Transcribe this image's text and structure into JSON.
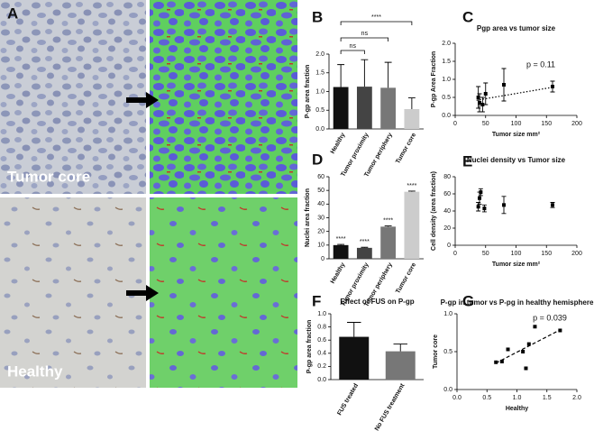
{
  "image_panel": {
    "label": "A",
    "top_caption": "Tumor core",
    "bottom_caption": "Healthy"
  },
  "chart_data": [
    {
      "type": "bar",
      "label": "B",
      "ylabel": "P-gp area fraction",
      "categories": [
        "Healthy",
        "Tumor proximity",
        "Tumor periphery",
        "Tumor core"
      ],
      "values": [
        1.12,
        1.13,
        1.1,
        0.53
      ],
      "errors": [
        0.6,
        0.72,
        0.68,
        0.3
      ],
      "colors": [
        "#111111",
        "#444444",
        "#777777",
        "#cccccc"
      ],
      "ylim": [
        0,
        2.0
      ],
      "yticks": [
        {
          "value": 0,
          "label": "0.0"
        },
        {
          "value": 0.5,
          "label": "0.5"
        },
        {
          "value": 1.0,
          "label": "1.0"
        },
        {
          "value": 1.5,
          "label": "1.5"
        },
        {
          "value": 2.0,
          "label": "2.0"
        }
      ],
      "comparisons": [
        {
          "between": [
            "Healthy",
            "Tumor proximity"
          ],
          "label": "ns"
        },
        {
          "between": [
            "Healthy",
            "Tumor periphery"
          ],
          "label": "ns"
        },
        {
          "between": [
            "Healthy",
            "Tumor core"
          ],
          "label": "****"
        }
      ]
    },
    {
      "type": "scatter",
      "label": "C",
      "title": "Pgp area vs tumor size",
      "xlabel": "Tumor size mm²",
      "ylabel": "P-gp Area Fraction",
      "x": [
        38,
        40,
        45,
        50,
        80,
        160
      ],
      "values": [
        0.5,
        0.35,
        0.3,
        0.6,
        0.85,
        0.8
      ],
      "errors": [
        0.3,
        0.25,
        0.2,
        0.3,
        0.45,
        0.15
      ],
      "xlim": [
        0,
        200
      ],
      "xticks": [
        0,
        50,
        100,
        150,
        200
      ],
      "ylim": [
        0,
        2.0
      ],
      "yticks": [
        {
          "value": 0,
          "label": "0.0"
        },
        {
          "value": 0.5,
          "label": "0.5"
        },
        {
          "value": 1.0,
          "label": "1.0"
        },
        {
          "value": 1.5,
          "label": "1.5"
        },
        {
          "value": 2.0,
          "label": "2.0"
        }
      ],
      "trend": {
        "x": [
          35,
          160
        ],
        "y": [
          0.42,
          0.78
        ],
        "style": "dotted"
      },
      "annotation": "p = 0.11"
    },
    {
      "type": "bar",
      "label": "D",
      "ylabel": "Nuclei area fraction",
      "categories": [
        "Healthy",
        "Tumor proximity",
        "Tumor periphery",
        "Tumor core"
      ],
      "values": [
        10,
        8,
        23.5,
        49
      ],
      "errors": [
        0.5,
        0.4,
        0.5,
        0.5
      ],
      "colors": [
        "#111111",
        "#444444",
        "#777777",
        "#cccccc"
      ],
      "ylim": [
        0,
        60
      ],
      "yticks": [
        0,
        10,
        20,
        30,
        40,
        50,
        60
      ],
      "bar_annotations": [
        "****",
        "****",
        "****",
        "****"
      ]
    },
    {
      "type": "scatter",
      "label": "E",
      "title": "Nuclei density vs Tumor size",
      "xlabel": "Tumor size mm²",
      "ylabel": "Cell density (area fraction)",
      "x": [
        38,
        40,
        42,
        48,
        80,
        160
      ],
      "values": [
        45,
        55,
        62,
        43,
        47,
        47
      ],
      "errors": [
        5,
        7,
        4,
        4,
        10,
        3
      ],
      "xlim": [
        0,
        200
      ],
      "xticks": [
        0,
        50,
        100,
        150,
        200
      ],
      "ylim": [
        0,
        80
      ],
      "yticks": [
        0,
        20,
        40,
        60,
        80
      ]
    },
    {
      "type": "bar",
      "label": "F",
      "title": "Effect of FUS on P-gp",
      "ylabel": "P-gp area fraction",
      "categories": [
        "FUS treated",
        "No FUS treatment"
      ],
      "values": [
        0.65,
        0.43
      ],
      "errors": [
        0.22,
        0.11
      ],
      "colors": [
        "#111111",
        "#777777"
      ],
      "ylim": [
        0,
        1.0
      ],
      "yticks": [
        {
          "value": 0,
          "label": "0.0"
        },
        {
          "value": 0.2,
          "label": "0.2"
        },
        {
          "value": 0.4,
          "label": "0.4"
        },
        {
          "value": 0.6,
          "label": "0.6"
        },
        {
          "value": 0.8,
          "label": "0.8"
        },
        {
          "value": 1.0,
          "label": "1.0"
        }
      ]
    },
    {
      "type": "scatter",
      "label": "G",
      "title": "P-gp in tumor vs P-pg in healthy hemisphere",
      "xlabel": "Healthy",
      "ylabel": "Tumor core",
      "x": [
        0.65,
        0.75,
        0.85,
        1.1,
        1.15,
        1.2,
        1.3,
        1.72
      ],
      "values": [
        0.36,
        0.37,
        0.53,
        0.5,
        0.28,
        0.6,
        0.83,
        0.78
      ],
      "xlim": [
        0,
        2.0
      ],
      "xticks": [
        {
          "value": 0,
          "label": "0.0"
        },
        {
          "value": 0.5,
          "label": "0.5"
        },
        {
          "value": 1.0,
          "label": "1.0"
        },
        {
          "value": 1.5,
          "label": "1.5"
        },
        {
          "value": 2.0,
          "label": "2.0"
        }
      ],
      "ylim": [
        0,
        1.0
      ],
      "yticks": [
        {
          "value": 0,
          "label": "0.0"
        },
        {
          "value": 0.5,
          "label": "0.5"
        },
        {
          "value": 1.0,
          "label": "1.0"
        }
      ],
      "trend": {
        "x": [
          0.65,
          1.75
        ],
        "y": [
          0.35,
          0.8
        ],
        "style": "dashed"
      },
      "annotation": "p = 0.039"
    }
  ]
}
